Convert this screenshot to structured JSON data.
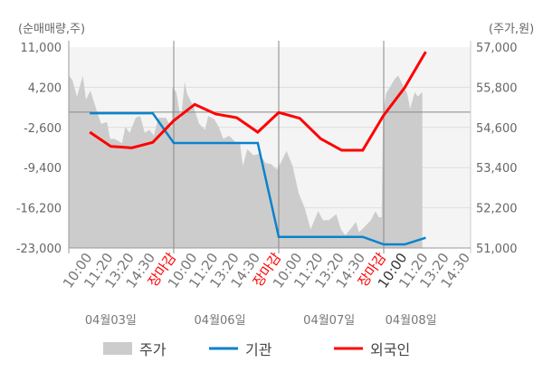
{
  "chart_data": {
    "type": "line",
    "left_axis_label": "(순매매량,주)",
    "right_axis_label": "(주가,원)",
    "left_ticks": [
      "11,000",
      "4,200",
      "-2,600",
      "-9,400",
      "-16,200",
      "-23,000"
    ],
    "left_range": [
      -23000,
      11000
    ],
    "right_ticks": [
      "57,000",
      "55,800",
      "54,600",
      "53,400",
      "52,200",
      "51,000"
    ],
    "right_range": [
      51000,
      57000
    ],
    "x_labels": [
      "10:00",
      "11:20",
      "13:20",
      "14:30",
      "장마감",
      "10:00",
      "11:20",
      "13:20",
      "14:30",
      "장마감",
      "10:00",
      "11:20",
      "13:20",
      "14:30",
      "장마감",
      "10:00",
      "11:20",
      "13:20",
      "14:30"
    ],
    "x_label_styles": [
      "n",
      "n",
      "n",
      "n",
      "close",
      "n",
      "n",
      "n",
      "n",
      "close",
      "n",
      "n",
      "n",
      "n",
      "close",
      "current",
      "n",
      "n",
      "n"
    ],
    "day_labels": [
      {
        "label": "04월03일",
        "center_slot": 2
      },
      {
        "label": "04월06일",
        "center_slot": 7.2
      },
      {
        "label": "04월07일",
        "center_slot": 12.4
      },
      {
        "label": "04월08일",
        "center_slot": 16.3
      }
    ],
    "day_separators_slot": [
      5,
      10,
      15
    ],
    "legend": [
      {
        "name": "주가",
        "kind": "area",
        "color": "#cccccc"
      },
      {
        "name": "기관",
        "kind": "line",
        "color": "#0a82cc"
      },
      {
        "name": "외국인",
        "kind": "line",
        "color": "#ff0000"
      }
    ],
    "series": [
      {
        "name": "기관",
        "axis": "left",
        "slots": [
          1,
          2,
          3,
          4,
          5,
          6,
          7,
          8,
          9,
          10,
          11,
          12,
          13,
          14,
          15,
          16,
          17
        ],
        "values": [
          -200,
          -200,
          -200,
          -200,
          -5230,
          -5230,
          -5230,
          -5230,
          -5230,
          -21120,
          -21120,
          -21120,
          -21120,
          -21120,
          -22390,
          -22390,
          -21270
        ]
      },
      {
        "name": "외국인",
        "axis": "left",
        "slots": [
          1,
          2,
          3,
          4,
          5,
          6,
          7,
          8,
          9,
          10,
          11,
          12,
          13,
          14,
          15,
          16,
          17
        ],
        "values": [
          -3400,
          -5800,
          -6050,
          -5130,
          -1450,
          1300,
          -330,
          -950,
          -3400,
          -70,
          -1050,
          -4510,
          -6460,
          -6460,
          -530,
          4150,
          10190
        ]
      },
      {
        "name": "주가",
        "axis": "right",
        "slots": [
          0,
          0.17,
          0.39,
          0.67,
          0.82,
          1.03,
          1.32,
          1.54,
          1.82,
          1.97,
          2.18,
          2.54,
          2.69,
          2.9,
          3.19,
          3.4,
          3.62,
          3.84,
          4.05,
          4.27,
          4.63,
          4.84,
          4.91,
          4.93,
          5.12,
          5.34,
          5.52,
          5.63,
          5.92,
          6.21,
          6.49,
          6.64,
          6.92,
          7.14,
          7.36,
          7.64,
          7.93,
          8.15,
          8.29,
          8.5,
          8.79,
          9.08,
          9.37,
          9.65,
          9.87,
          9.94,
          10.09,
          10.37,
          10.66,
          10.95,
          11.24,
          11.52,
          11.88,
          12.1,
          12.38,
          12.74,
          12.96,
          13.17,
          13.46,
          13.68,
          13.82,
          14.11,
          14.39,
          14.61,
          14.76,
          14.9,
          14.97,
          15.11,
          15.54,
          15.69,
          15.9,
          16.12,
          16.26,
          16.48,
          16.62,
          16.84
        ],
        "values": [
          56150,
          56020,
          55520,
          56150,
          55430,
          55700,
          55120,
          54710,
          54760,
          54260,
          54260,
          54130,
          54620,
          54440,
          54890,
          54940,
          54440,
          54530,
          54350,
          54890,
          54890,
          54620,
          54620,
          55790,
          55660,
          54800,
          55970,
          55610,
          55250,
          54710,
          54530,
          54940,
          54850,
          54620,
          54260,
          54350,
          54170,
          54170,
          53450,
          53950,
          53770,
          53810,
          53540,
          53500,
          53360,
          53360,
          53540,
          53900,
          53450,
          52640,
          52190,
          51560,
          52100,
          51830,
          51830,
          52010,
          51560,
          51380,
          51600,
          51780,
          51470,
          51650,
          51830,
          52100,
          51920,
          51920,
          54980,
          55610,
          56060,
          56150,
          55880,
          55610,
          55160,
          55660,
          55520,
          55660
        ]
      }
    ]
  }
}
